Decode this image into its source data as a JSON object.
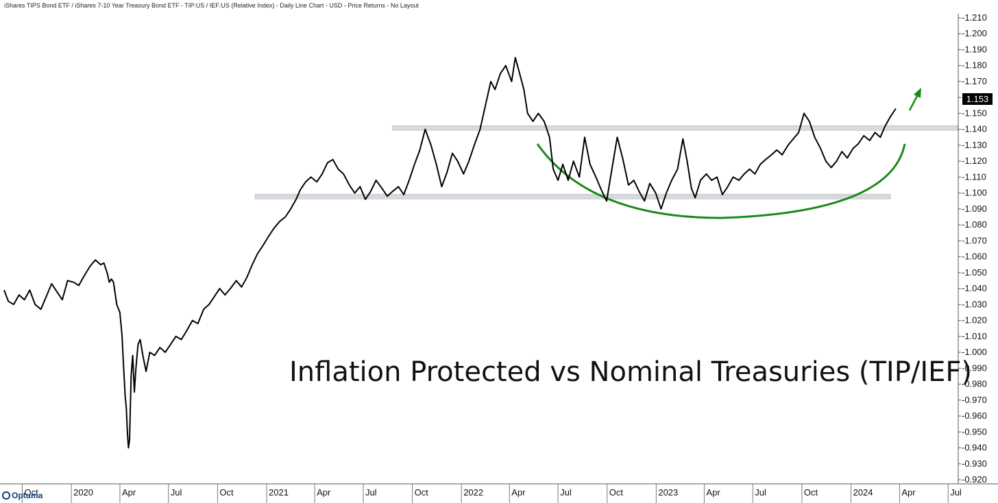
{
  "header": {
    "description": "iShares TIPS Bond ETF / iShares 7-10 Year Treasury Bond ETF - TIP:US / IEF:US (Relative Index) - Daily Line Chart - USD - Price Returns - No Layout"
  },
  "annotation_title": "Inflation Protected vs Nominal Treasuries (TIP/IEF)",
  "brand": {
    "name": "Optuma"
  },
  "colors": {
    "line": "#000000",
    "arc": "#178a17",
    "band": "#d6d9dd",
    "axis": "#555555",
    "last_box": "#000000"
  },
  "chart_data": {
    "type": "line",
    "title": "",
    "xlabel": "",
    "ylabel": "",
    "ylim": [
      0.92,
      1.21
    ],
    "xlim": [
      "2019-08-28",
      "2024-07-20"
    ],
    "y_ticks": [
      "0.920",
      "0.930",
      "0.940",
      "0.950",
      "0.960",
      "0.970",
      "0.980",
      "0.990",
      "1.000",
      "1.010",
      "1.020",
      "1.030",
      "1.040",
      "1.050",
      "1.060",
      "1.070",
      "1.080",
      "1.090",
      "1.100",
      "1.110",
      "1.120",
      "1.130",
      "1.140",
      "1.150",
      "1.160",
      "1.170",
      "1.180",
      "1.190",
      "1.200",
      "1.210"
    ],
    "x_ticks": [
      {
        "label": "Oct",
        "date": "2019-10-01"
      },
      {
        "label": "2020",
        "date": "2020-01-01"
      },
      {
        "label": "Apr",
        "date": "2020-04-01"
      },
      {
        "label": "Jul",
        "date": "2020-07-01"
      },
      {
        "label": "Oct",
        "date": "2020-10-01"
      },
      {
        "label": "2021",
        "date": "2021-01-01"
      },
      {
        "label": "Apr",
        "date": "2021-04-01"
      },
      {
        "label": "Jul",
        "date": "2021-07-01"
      },
      {
        "label": "Oct",
        "date": "2021-10-01"
      },
      {
        "label": "2022",
        "date": "2022-01-01"
      },
      {
        "label": "Apr",
        "date": "2022-04-01"
      },
      {
        "label": "Jul",
        "date": "2022-07-01"
      },
      {
        "label": "Oct",
        "date": "2022-10-01"
      },
      {
        "label": "2023",
        "date": "2023-01-01"
      },
      {
        "label": "Apr",
        "date": "2023-04-01"
      },
      {
        "label": "Jul",
        "date": "2023-07-01"
      },
      {
        "label": "Oct",
        "date": "2023-10-01"
      },
      {
        "label": "2024",
        "date": "2024-01-01"
      },
      {
        "label": "Apr",
        "date": "2024-04-01"
      },
      {
        "label": "Jul",
        "date": "2024-07-01"
      }
    ],
    "last_value": "1.153",
    "series": [
      {
        "points": [
          [
            "2019-08-28",
            1.039
          ],
          [
            "2019-09-05",
            1.032
          ],
          [
            "2019-09-15",
            1.03
          ],
          [
            "2019-09-25",
            1.036
          ],
          [
            "2019-10-05",
            1.033
          ],
          [
            "2019-10-15",
            1.039
          ],
          [
            "2019-10-25",
            1.03
          ],
          [
            "2019-11-05",
            1.027
          ],
          [
            "2019-11-15",
            1.035
          ],
          [
            "2019-11-25",
            1.043
          ],
          [
            "2019-12-05",
            1.038
          ],
          [
            "2019-12-15",
            1.033
          ],
          [
            "2019-12-25",
            1.045
          ],
          [
            "2020-01-05",
            1.044
          ],
          [
            "2020-01-15",
            1.042
          ],
          [
            "2020-01-25",
            1.048
          ],
          [
            "2020-02-05",
            1.054
          ],
          [
            "2020-02-15",
            1.058
          ],
          [
            "2020-02-25",
            1.055
          ],
          [
            "2020-03-02",
            1.056
          ],
          [
            "2020-03-08",
            1.05
          ],
          [
            "2020-03-12",
            1.044
          ],
          [
            "2020-03-16",
            1.046
          ],
          [
            "2020-03-20",
            1.044
          ],
          [
            "2020-03-26",
            1.03
          ],
          [
            "2020-04-01",
            1.025
          ],
          [
            "2020-04-05",
            1.01
          ],
          [
            "2020-04-08",
            0.99
          ],
          [
            "2020-04-11",
            0.972
          ],
          [
            "2020-04-13",
            0.965
          ],
          [
            "2020-04-15",
            0.95
          ],
          [
            "2020-04-17",
            0.94
          ],
          [
            "2020-04-19",
            0.945
          ],
          [
            "2020-04-22",
            0.985
          ],
          [
            "2020-04-25",
            0.998
          ],
          [
            "2020-04-28",
            0.975
          ],
          [
            "2020-05-01",
            0.99
          ],
          [
            "2020-05-05",
            1.005
          ],
          [
            "2020-05-09",
            1.008
          ],
          [
            "2020-05-14",
            0.998
          ],
          [
            "2020-05-20",
            0.988
          ],
          [
            "2020-05-27",
            1.0
          ],
          [
            "2020-06-05",
            0.998
          ],
          [
            "2020-06-15",
            1.003
          ],
          [
            "2020-06-25",
            1.0
          ],
          [
            "2020-07-05",
            1.005
          ],
          [
            "2020-07-15",
            1.01
          ],
          [
            "2020-07-25",
            1.008
          ],
          [
            "2020-08-05",
            1.014
          ],
          [
            "2020-08-15",
            1.02
          ],
          [
            "2020-08-25",
            1.018
          ],
          [
            "2020-09-05",
            1.027
          ],
          [
            "2020-09-15",
            1.03
          ],
          [
            "2020-09-25",
            1.035
          ],
          [
            "2020-10-05",
            1.04
          ],
          [
            "2020-10-15",
            1.036
          ],
          [
            "2020-10-25",
            1.04
          ],
          [
            "2020-11-05",
            1.045
          ],
          [
            "2020-11-15",
            1.041
          ],
          [
            "2020-11-25",
            1.047
          ],
          [
            "2020-12-05",
            1.055
          ],
          [
            "2020-12-15",
            1.062
          ],
          [
            "2020-12-25",
            1.067
          ],
          [
            "2021-01-05",
            1.073
          ],
          [
            "2021-01-15",
            1.078
          ],
          [
            "2021-01-25",
            1.082
          ],
          [
            "2021-02-05",
            1.085
          ],
          [
            "2021-02-15",
            1.09
          ],
          [
            "2021-02-25",
            1.096
          ],
          [
            "2021-03-05",
            1.102
          ],
          [
            "2021-03-15",
            1.107
          ],
          [
            "2021-03-25",
            1.11
          ],
          [
            "2021-04-05",
            1.107
          ],
          [
            "2021-04-15",
            1.112
          ],
          [
            "2021-04-25",
            1.119
          ],
          [
            "2021-05-05",
            1.121
          ],
          [
            "2021-05-15",
            1.115
          ],
          [
            "2021-05-25",
            1.112
          ],
          [
            "2021-06-05",
            1.105
          ],
          [
            "2021-06-15",
            1.1
          ],
          [
            "2021-06-25",
            1.104
          ],
          [
            "2021-07-05",
            1.096
          ],
          [
            "2021-07-15",
            1.101
          ],
          [
            "2021-07-25",
            1.108
          ],
          [
            "2021-08-05",
            1.103
          ],
          [
            "2021-08-15",
            1.098
          ],
          [
            "2021-08-25",
            1.101
          ],
          [
            "2021-09-05",
            1.104
          ],
          [
            "2021-09-15",
            1.099
          ],
          [
            "2021-09-25",
            1.108
          ],
          [
            "2021-10-05",
            1.118
          ],
          [
            "2021-10-15",
            1.127
          ],
          [
            "2021-10-25",
            1.14
          ],
          [
            "2021-11-05",
            1.13
          ],
          [
            "2021-11-15",
            1.118
          ],
          [
            "2021-11-25",
            1.104
          ],
          [
            "2021-12-05",
            1.113
          ],
          [
            "2021-12-15",
            1.125
          ],
          [
            "2021-12-25",
            1.12
          ],
          [
            "2022-01-05",
            1.112
          ],
          [
            "2022-01-15",
            1.12
          ],
          [
            "2022-01-25",
            1.13
          ],
          [
            "2022-02-05",
            1.14
          ],
          [
            "2022-02-15",
            1.155
          ],
          [
            "2022-02-25",
            1.17
          ],
          [
            "2022-03-05",
            1.165
          ],
          [
            "2022-03-15",
            1.175
          ],
          [
            "2022-03-25",
            1.18
          ],
          [
            "2022-04-05",
            1.17
          ],
          [
            "2022-04-12",
            1.185
          ],
          [
            "2022-04-20",
            1.175
          ],
          [
            "2022-04-28",
            1.165
          ],
          [
            "2022-05-05",
            1.15
          ],
          [
            "2022-05-15",
            1.145
          ],
          [
            "2022-05-25",
            1.15
          ],
          [
            "2022-06-05",
            1.145
          ],
          [
            "2022-06-15",
            1.135
          ],
          [
            "2022-06-22",
            1.115
          ],
          [
            "2022-07-01",
            1.108
          ],
          [
            "2022-07-10",
            1.118
          ],
          [
            "2022-07-20",
            1.108
          ],
          [
            "2022-07-30",
            1.12
          ],
          [
            "2022-08-10",
            1.11
          ],
          [
            "2022-08-20",
            1.135
          ],
          [
            "2022-08-30",
            1.118
          ],
          [
            "2022-09-10",
            1.11
          ],
          [
            "2022-09-20",
            1.102
          ],
          [
            "2022-09-30",
            1.095
          ],
          [
            "2022-10-10",
            1.115
          ],
          [
            "2022-10-20",
            1.135
          ],
          [
            "2022-10-30",
            1.122
          ],
          [
            "2022-11-10",
            1.105
          ],
          [
            "2022-11-20",
            1.108
          ],
          [
            "2022-11-30",
            1.101
          ],
          [
            "2022-12-10",
            1.095
          ],
          [
            "2022-12-20",
            1.106
          ],
          [
            "2022-12-31",
            1.1
          ],
          [
            "2023-01-10",
            1.09
          ],
          [
            "2023-01-20",
            1.1
          ],
          [
            "2023-01-30",
            1.108
          ],
          [
            "2023-02-10",
            1.115
          ],
          [
            "2023-02-20",
            1.134
          ],
          [
            "2023-02-28",
            1.12
          ],
          [
            "2023-03-08",
            1.103
          ],
          [
            "2023-03-15",
            1.097
          ],
          [
            "2023-03-25",
            1.108
          ],
          [
            "2023-04-05",
            1.112
          ],
          [
            "2023-04-15",
            1.108
          ],
          [
            "2023-04-25",
            1.11
          ],
          [
            "2023-05-05",
            1.099
          ],
          [
            "2023-05-15",
            1.104
          ],
          [
            "2023-05-25",
            1.11
          ],
          [
            "2023-06-05",
            1.108
          ],
          [
            "2023-06-15",
            1.112
          ],
          [
            "2023-06-25",
            1.115
          ],
          [
            "2023-07-05",
            1.112
          ],
          [
            "2023-07-15",
            1.118
          ],
          [
            "2023-07-25",
            1.121
          ],
          [
            "2023-08-05",
            1.124
          ],
          [
            "2023-08-15",
            1.127
          ],
          [
            "2023-08-25",
            1.124
          ],
          [
            "2023-09-05",
            1.13
          ],
          [
            "2023-09-15",
            1.134
          ],
          [
            "2023-09-25",
            1.138
          ],
          [
            "2023-10-05",
            1.15
          ],
          [
            "2023-10-15",
            1.145
          ],
          [
            "2023-10-25",
            1.135
          ],
          [
            "2023-11-05",
            1.128
          ],
          [
            "2023-11-15",
            1.12
          ],
          [
            "2023-11-25",
            1.116
          ],
          [
            "2023-12-05",
            1.12
          ],
          [
            "2023-12-15",
            1.126
          ],
          [
            "2023-12-25",
            1.122
          ],
          [
            "2024-01-05",
            1.128
          ],
          [
            "2024-01-15",
            1.131
          ],
          [
            "2024-01-25",
            1.136
          ],
          [
            "2024-02-05",
            1.133
          ],
          [
            "2024-02-15",
            1.138
          ],
          [
            "2024-02-25",
            1.135
          ],
          [
            "2024-03-05",
            1.142
          ],
          [
            "2024-03-15",
            1.148
          ],
          [
            "2024-03-25",
            1.153
          ]
        ]
      }
    ],
    "bands": [
      {
        "value": 1.098,
        "from": "2020-12-10",
        "to": "2024-03-15"
      },
      {
        "value": 1.141,
        "from": "2021-08-25",
        "to": "2024-07-20"
      }
    ]
  }
}
